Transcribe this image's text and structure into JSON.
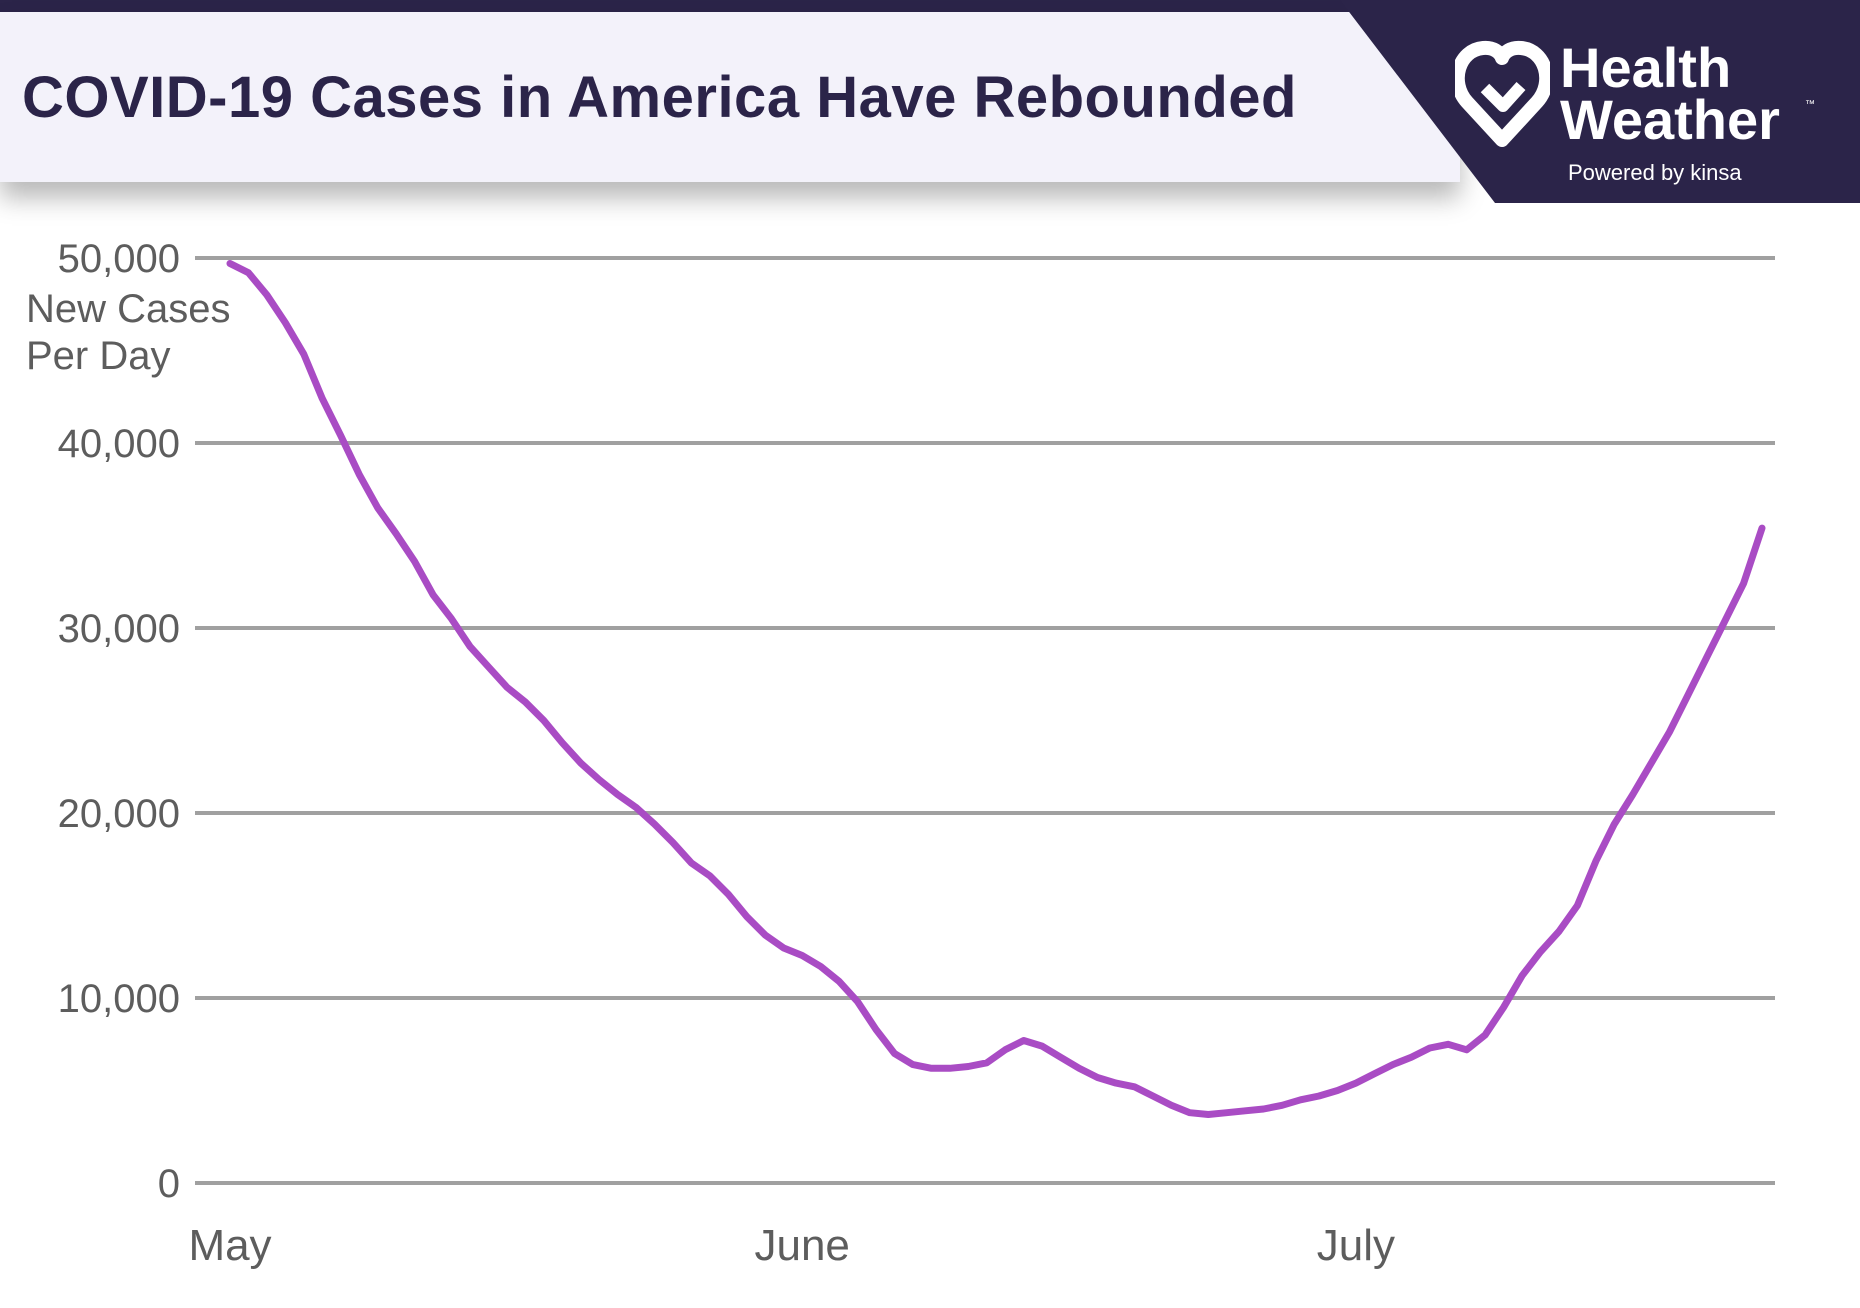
{
  "header": {
    "title": "COVID-19 Cases in America Have Rebounded",
    "brand_line1": "Health",
    "brand_line2": "Weather",
    "brand_tm": "™",
    "powered_by": "Powered by kinsa"
  },
  "colors": {
    "line": "#a94cc4",
    "header_dark": "#2b2449",
    "header_light": "#f3f2fa",
    "grid": "#a0a0a0"
  },
  "chart_data": {
    "type": "line",
    "title": "COVID-19 Cases in America Have Rebounded",
    "ylabel_lines": [
      "New Cases",
      "Per Day"
    ],
    "xlabel": "",
    "ylim": [
      0,
      50000
    ],
    "xlim": [
      1,
      84
    ],
    "yticks": [
      0,
      10000,
      20000,
      30000,
      40000,
      50000
    ],
    "ytick_labels": [
      "0",
      "10,000",
      "20,000",
      "30,000",
      "40,000",
      "50,000"
    ],
    "xticks": [
      {
        "label": "May",
        "day": 1
      },
      {
        "label": "June",
        "day": 32
      },
      {
        "label": "July",
        "day": 62
      }
    ],
    "grid": true,
    "series": [
      {
        "name": "New Cases Per Day",
        "x": [
          1,
          2,
          3,
          4,
          5,
          6,
          7,
          8,
          9,
          10,
          11,
          12,
          13,
          14,
          15,
          16,
          17,
          18,
          19,
          20,
          21,
          22,
          23,
          24,
          25,
          26,
          27,
          28,
          29,
          30,
          31,
          32,
          33,
          34,
          35,
          36,
          37,
          38,
          39,
          40,
          41,
          42,
          43,
          44,
          45,
          46,
          47,
          48,
          49,
          50,
          51,
          52,
          53,
          54,
          55,
          56,
          57,
          58,
          59,
          60,
          61,
          62,
          63,
          64,
          65,
          66,
          67,
          68,
          69,
          70,
          71,
          72,
          73,
          74,
          75,
          76,
          77,
          78,
          79,
          80,
          81,
          82,
          83,
          84
        ],
        "values": [
          49700,
          49200,
          48000,
          46500,
          44800,
          42400,
          40400,
          38300,
          36500,
          35100,
          33600,
          31800,
          30500,
          29000,
          27900,
          26800,
          26000,
          25000,
          23800,
          22700,
          21800,
          21000,
          20300,
          19400,
          18400,
          17300,
          16600,
          15600,
          14400,
          13400,
          12700,
          12300,
          11700,
          10900,
          9800,
          8300,
          7000,
          6400,
          6200,
          6200,
          6300,
          6500,
          7200,
          7700,
          7400,
          6800,
          6200,
          5700,
          5400,
          5200,
          4700,
          4200,
          3800,
          3700,
          3800,
          3900,
          4000,
          4200,
          4500,
          4700,
          5000,
          5400,
          5900,
          6400,
          6800,
          7300,
          7500,
          7200,
          8000,
          9500,
          11200,
          12500,
          13600,
          15000,
          17400,
          19400,
          21000,
          22700,
          24400,
          26400,
          28400,
          30400,
          32400,
          35400
        ]
      }
    ]
  }
}
